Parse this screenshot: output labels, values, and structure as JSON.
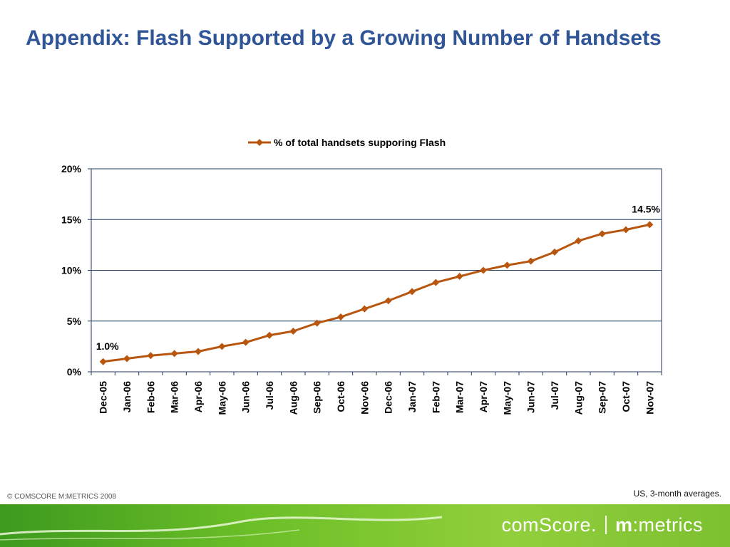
{
  "slide": {
    "title": "Appendix:  Flash Supported by a Growing Number of Handsets",
    "copyright": "© COMSCORE M:METRICS 2008",
    "footnote": "US, 3-month averages."
  },
  "brand": {
    "name_left": "comScore.",
    "name_right_bold": "m",
    "name_right": ":metrics",
    "colors": {
      "banner": "#6cbf27",
      "text": "#ffffff"
    }
  },
  "chart_data": {
    "type": "line",
    "title": "",
    "xlabel": "",
    "ylabel": "",
    "legend": "top",
    "grid": true,
    "y_tick_labels": [
      "0%",
      "5%",
      "10%",
      "15%",
      "20%"
    ],
    "ylim": [
      0,
      20
    ],
    "categories": [
      "Dec-05",
      "Jan-06",
      "Feb-06",
      "Mar-06",
      "Apr-06",
      "May-06",
      "Jun-06",
      "Jul-06",
      "Aug-06",
      "Sep-06",
      "Oct-06",
      "Nov-06",
      "Dec-06",
      "Jan-07",
      "Feb-07",
      "Mar-07",
      "Apr-07",
      "May-07",
      "Jun-07",
      "Jul-07",
      "Aug-07",
      "Sep-07",
      "Oct-07",
      "Nov-07"
    ],
    "series": [
      {
        "name": "% of total handsets supporing Flash",
        "color": "#b8560f",
        "marker": "diamond",
        "values": [
          1.0,
          1.3,
          1.6,
          1.8,
          2.0,
          2.5,
          2.9,
          3.6,
          4.0,
          4.8,
          5.4,
          6.2,
          7.0,
          7.9,
          8.8,
          9.4,
          10.0,
          10.5,
          10.9,
          11.8,
          12.9,
          13.6,
          14.0,
          14.5
        ]
      }
    ],
    "data_labels": [
      {
        "index": 0,
        "text": "1.0%"
      },
      {
        "index": 23,
        "text": "14.5%"
      }
    ],
    "colors": {
      "grid": "#1f3a5f",
      "axis_text": "#000000"
    }
  }
}
